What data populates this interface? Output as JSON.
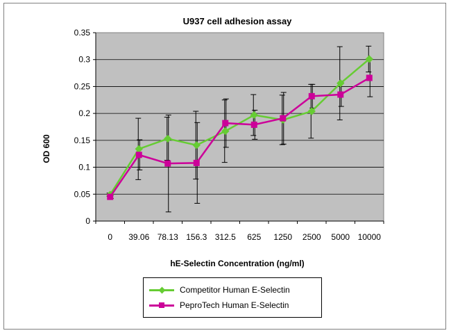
{
  "chart_data": {
    "type": "line",
    "title": "U937 cell adhesion assay",
    "xlabel": "hE-Selectin Concentration (ng/ml)",
    "ylabel": "OD 600",
    "categories": [
      "0",
      "39.06",
      "78.13",
      "156.3",
      "312.5",
      "625",
      "1250",
      "2500",
      "5000",
      "10000"
    ],
    "ylim": [
      0,
      0.35
    ],
    "yticks": [
      "0",
      "0.05",
      "0.1",
      "0.15",
      "0.2",
      "0.25",
      "0.3",
      "0.35"
    ],
    "grid": true,
    "legend_position": "bottom",
    "series": [
      {
        "name": "Competitor Human E-Selectin",
        "color": "#66cc33",
        "marker": "diamond",
        "values": [
          0.049,
          0.134,
          0.153,
          0.141,
          0.167,
          0.197,
          0.188,
          0.204,
          0.256,
          0.301
        ],
        "error": [
          0.003,
          0.057,
          0.04,
          0.063,
          0.058,
          0.038,
          0.046,
          0.05,
          0.068,
          0.024
        ]
      },
      {
        "name": "PeproTech Human E-Selectin",
        "color": "#cc0099",
        "marker": "square",
        "values": [
          0.045,
          0.123,
          0.107,
          0.108,
          0.182,
          0.179,
          0.191,
          0.232,
          0.235,
          0.266
        ],
        "error": [
          0.003,
          0.028,
          0.09,
          0.075,
          0.045,
          0.027,
          0.048,
          0.022,
          0.022,
          0.035
        ]
      }
    ]
  }
}
